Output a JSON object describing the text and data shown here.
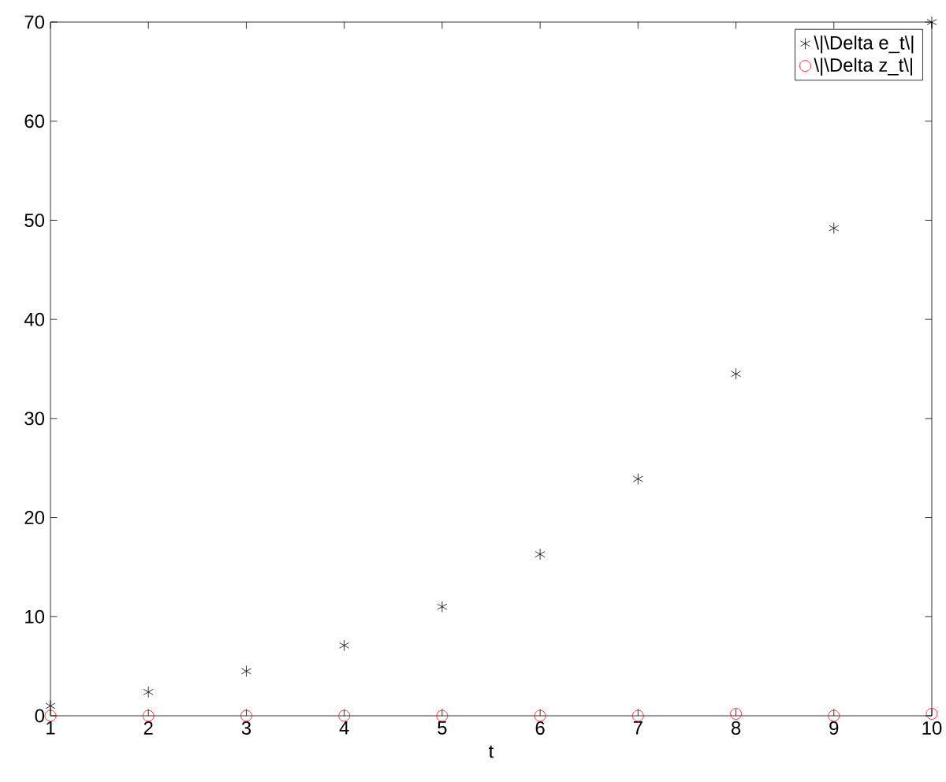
{
  "chart_data": {
    "type": "scatter",
    "xlabel": "t",
    "x": [
      1,
      2,
      3,
      4,
      5,
      6,
      7,
      8,
      9,
      10
    ],
    "series": [
      {
        "name": "\\|\\Delta e_t\\|",
        "color": "#000000",
        "marker": "cross",
        "values": [
          1,
          2.4,
          4.5,
          7.1,
          11,
          16.3,
          23.9,
          34.5,
          49.2,
          70
        ]
      },
      {
        "name": "\\|\\Delta z_t\\|",
        "color": "#ff0000",
        "marker": "circle",
        "values": [
          0,
          0,
          0,
          0,
          0,
          0,
          0,
          0.2,
          0,
          0.2
        ]
      }
    ],
    "xlim": [
      1,
      10
    ],
    "xticks": [
      1,
      2,
      3,
      4,
      5,
      6,
      7,
      8,
      9,
      10
    ],
    "ylim": [
      0,
      70
    ],
    "yticks": [
      0,
      10,
      20,
      30,
      40,
      50,
      60,
      70
    ],
    "grid": false,
    "legend": "top right"
  }
}
